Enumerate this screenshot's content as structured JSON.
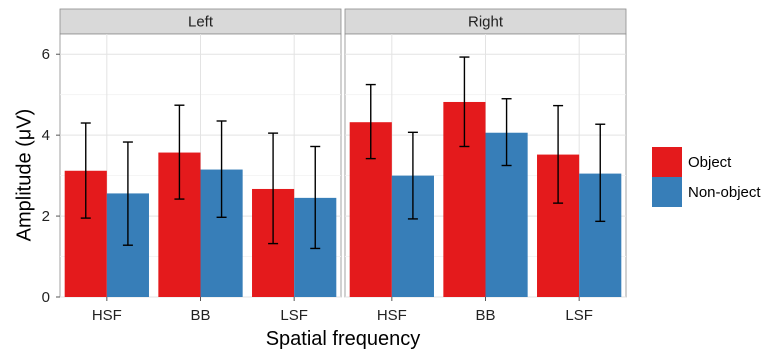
{
  "chart_data": {
    "type": "bar",
    "panels": [
      "Left",
      "Right"
    ],
    "categories": [
      "HSF",
      "BB",
      "LSF"
    ],
    "xlabel": "Spatial frequency",
    "ylabel": "Amplitude (μV)",
    "ylim": [
      0,
      6.5
    ],
    "yticks": [
      0,
      2,
      4,
      6
    ],
    "grid": true,
    "legend_position": "right",
    "series": [
      {
        "name": "Object",
        "color": "#e41a1c",
        "values": {
          "Left": [
            3.12,
            3.57,
            2.67
          ],
          "Right": [
            4.32,
            4.82,
            3.52
          ]
        },
        "error_low": {
          "Left": [
            1.95,
            2.42,
            1.32
          ],
          "Right": [
            3.42,
            3.72,
            2.32
          ]
        },
        "error_high": {
          "Left": [
            4.3,
            4.74,
            4.05
          ],
          "Right": [
            5.25,
            5.93,
            4.73
          ]
        }
      },
      {
        "name": "Non-object",
        "color": "#377eb8",
        "values": {
          "Left": [
            2.56,
            3.15,
            2.45
          ],
          "Right": [
            3.0,
            4.06,
            3.05
          ]
        },
        "error_low": {
          "Left": [
            1.28,
            1.97,
            1.2
          ],
          "Right": [
            1.93,
            3.25,
            1.87
          ]
        },
        "error_high": {
          "Left": [
            3.83,
            4.35,
            3.72
          ],
          "Right": [
            4.07,
            4.9,
            4.27
          ]
        }
      }
    ]
  }
}
